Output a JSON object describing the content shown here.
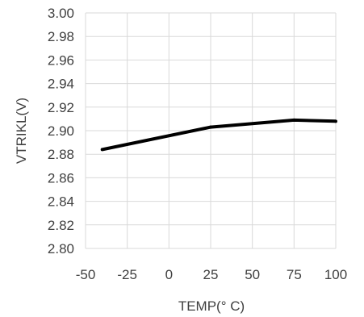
{
  "chart_data": {
    "type": "line",
    "title": "",
    "xlabel": "TEMP(° C)",
    "ylabel": "VTRIKL(V)",
    "xlim": [
      -50,
      100
    ],
    "ylim": [
      2.8,
      3.0
    ],
    "x_ticks": [
      "-50",
      "-25",
      "0",
      "25",
      "50",
      "75",
      "100"
    ],
    "y_ticks": [
      "2.80",
      "2.82",
      "2.84",
      "2.86",
      "2.88",
      "2.90",
      "2.92",
      "2.94",
      "2.96",
      "2.98",
      "3.00"
    ],
    "grid": true,
    "series": [
      {
        "x": [
          -40,
          25,
          75,
          100
        ],
        "y": [
          2.884,
          2.903,
          2.909,
          2.908
        ],
        "color": "#000000"
      }
    ]
  }
}
